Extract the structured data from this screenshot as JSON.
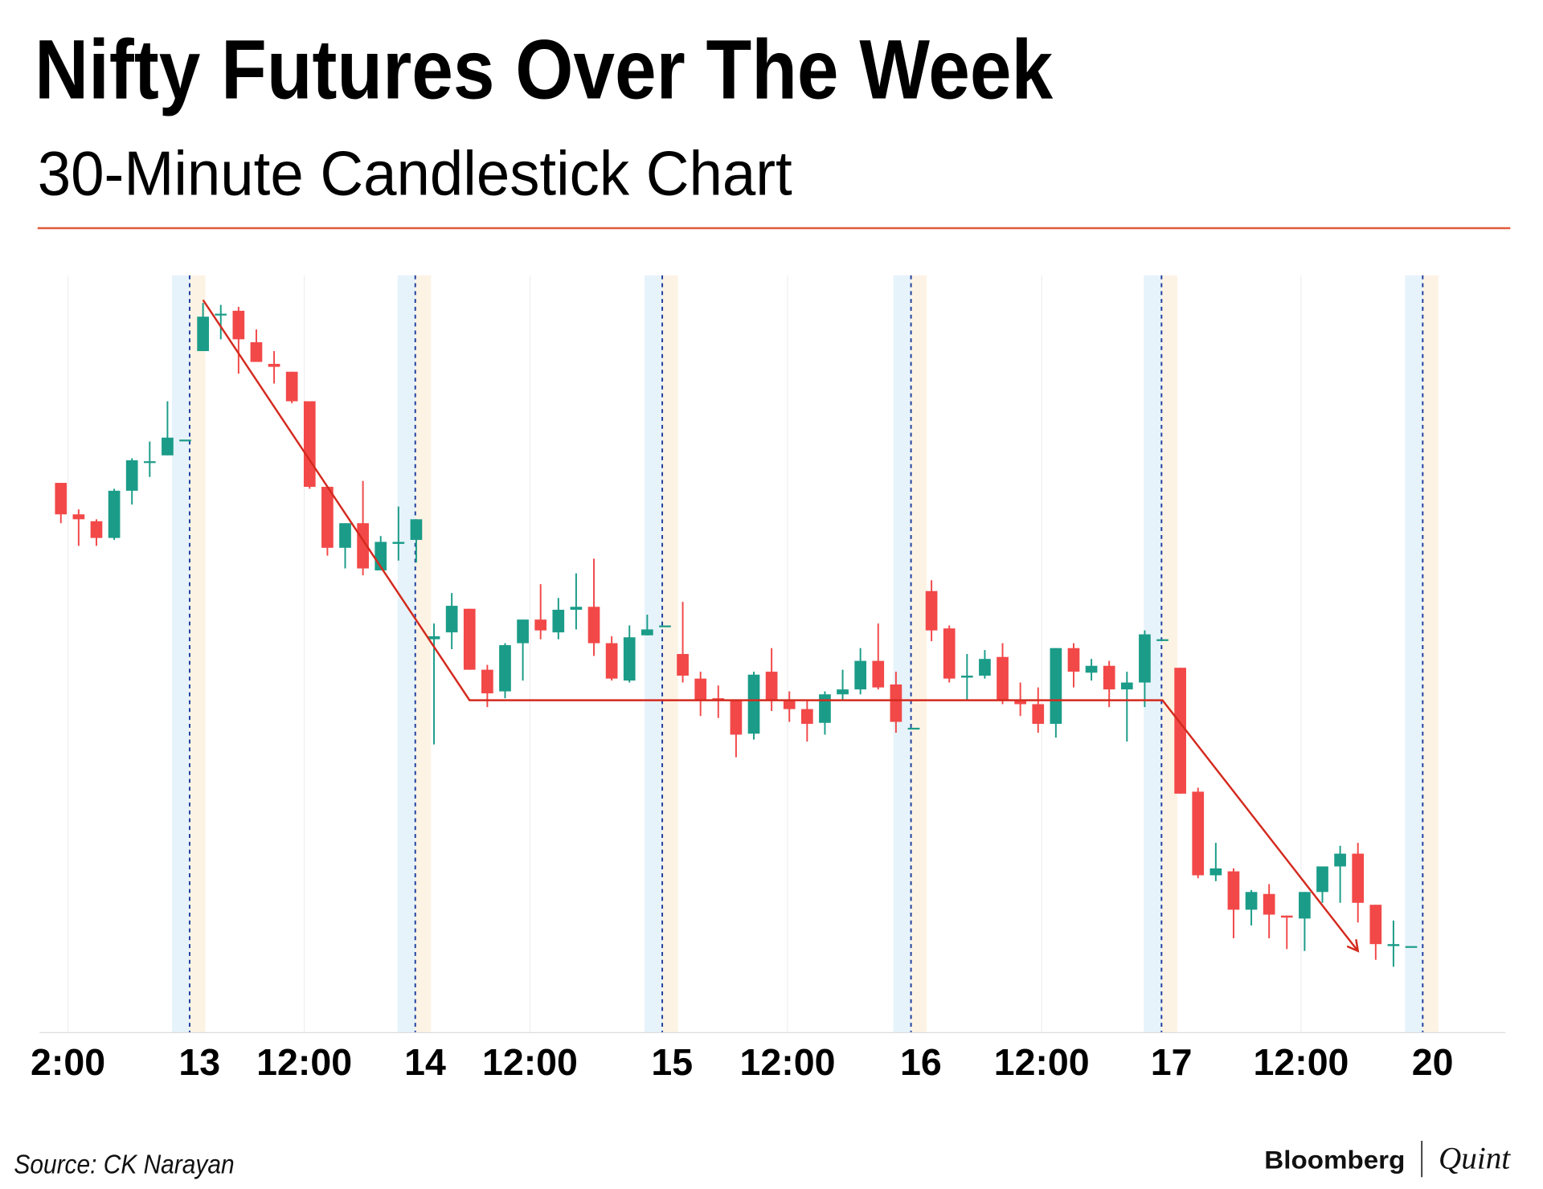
{
  "chart_data": {
    "type": "candlestick",
    "title": "Nifty Futures Over The Week",
    "subtitle": "30-Minute Candlestick Chart",
    "source": "Source: CK Narayan",
    "brand": [
      "Bloomberg",
      "Quint"
    ],
    "up_color": "#1b9c88",
    "down_color": "#f24848",
    "x": [
      0,
      1,
      2,
      3,
      4,
      5,
      6,
      7,
      8,
      9,
      10,
      11,
      12,
      13,
      14,
      15,
      16,
      17,
      18,
      19,
      20,
      21,
      22,
      23,
      24,
      25,
      26,
      27,
      28,
      29,
      30,
      31,
      32,
      33,
      34,
      35,
      36,
      37,
      38,
      39,
      40,
      41,
      42,
      43,
      44,
      45,
      46,
      47,
      48,
      49,
      50,
      51,
      52,
      53,
      54,
      55,
      56,
      57,
      58,
      59,
      60,
      61,
      62,
      63,
      64,
      65,
      66,
      67,
      68,
      69,
      70,
      71,
      72,
      73,
      74,
      75,
      76
    ],
    "open": [
      559,
      527,
      520,
      503,
      551,
      580,
      587,
      603,
      693,
      730,
      734,
      702,
      680,
      672,
      642,
      555,
      493,
      518,
      470,
      497,
      501,
      400,
      407,
      431,
      369,
      347,
      396,
      420,
      407,
      430,
      433,
      396,
      358,
      404,
      414,
      385,
      360,
      340,
      338,
      304,
      367,
      338,
      329,
      315,
      344,
      349,
      378,
      354,
      310,
      449,
      411,
      361,
      363,
      382,
      338,
      334,
      314,
      391,
      366,
      373,
      349,
      356,
      400,
      371,
      245,
      160,
      164,
      125,
      141,
      119,
      116,
      143,
      169,
      182,
      130,
      88,
      88
    ],
    "high": [
      559,
      532,
      522,
      553,
      584,
      601,
      642,
      603,
      742,
      740,
      738,
      715,
      693,
      672,
      642,
      555,
      518,
      561,
      505,
      535,
      522,
      416,
      447,
      431,
      374,
      396,
      420,
      456,
      442,
      467,
      482,
      403,
      414,
      425,
      414,
      438,
      367,
      353,
      338,
      367,
      391,
      347,
      338,
      347,
      369,
      391,
      416,
      367,
      310,
      460,
      414,
      385,
      389,
      396,
      356,
      351,
      391,
      396,
      380,
      378,
      367,
      409,
      400,
      371,
      249,
      193,
      167,
      145,
      151,
      119,
      143,
      169,
      190,
      193,
      130,
      114,
      88
    ],
    "low": [
      518,
      495,
      495,
      501,
      537,
      565,
      587,
      603,
      693,
      705,
      670,
      682,
      660,
      640,
      553,
      485,
      472,
      465,
      470,
      480,
      478,
      293,
      390,
      369,
      331,
      340,
      358,
      400,
      400,
      410,
      383,
      358,
      356,
      404,
      414,
      356,
      322,
      320,
      280,
      298,
      327,
      316,
      296,
      303,
      338,
      344,
      349,
      305,
      310,
      398,
      356,
      338,
      360,
      334,
      322,
      305,
      300,
      351,
      358,
      331,
      296,
      331,
      400,
      243,
      157,
      154,
      96,
      109,
      96,
      85,
      83,
      132,
      132,
      112,
      74,
      67,
      88
    ],
    "close": [
      527,
      522,
      503,
      551,
      582,
      581,
      605,
      603,
      728,
      731,
      705,
      682,
      677,
      642,
      555,
      493,
      518,
      472,
      499,
      499,
      522,
      403,
      434,
      369,
      345,
      394,
      420,
      409,
      430,
      433,
      396,
      360,
      402,
      410,
      414,
      363,
      338,
      338,
      303,
      364,
      338,
      329,
      314,
      344,
      349,
      378,
      351,
      316,
      310,
      409,
      360,
      363,
      380,
      338,
      334,
      314,
      391,
      367,
      373,
      349,
      356,
      405,
      400,
      243,
      160,
      167,
      125,
      143,
      120,
      117,
      143,
      169,
      182,
      132,
      90,
      90,
      88
    ],
    "xlim": [
      -1.2,
      81.3
    ],
    "ylim": [
      0,
      770
    ],
    "xticks": [
      {
        "value": 0.4,
        "label": "2:00"
      },
      {
        "value": 7.8,
        "label": "13"
      },
      {
        "value": 13.7,
        "label": "12:00"
      },
      {
        "value": 20.5,
        "label": "14"
      },
      {
        "value": 26.4,
        "label": "12:00"
      },
      {
        "value": 34.4,
        "label": "15"
      },
      {
        "value": 40.9,
        "label": "12:00"
      },
      {
        "value": 48.4,
        "label": "16"
      },
      {
        "value": 55.2,
        "label": "12:00"
      },
      {
        "value": 62.5,
        "label": "17"
      },
      {
        "value": 69.8,
        "label": "12:00"
      },
      {
        "value": 77.2,
        "label": "20"
      }
    ],
    "trendline": {
      "color": "#d42a1e",
      "x": [
        8,
        23,
        62,
        73
      ],
      "y": [
        745,
        338,
        338,
        83
      ]
    }
  }
}
